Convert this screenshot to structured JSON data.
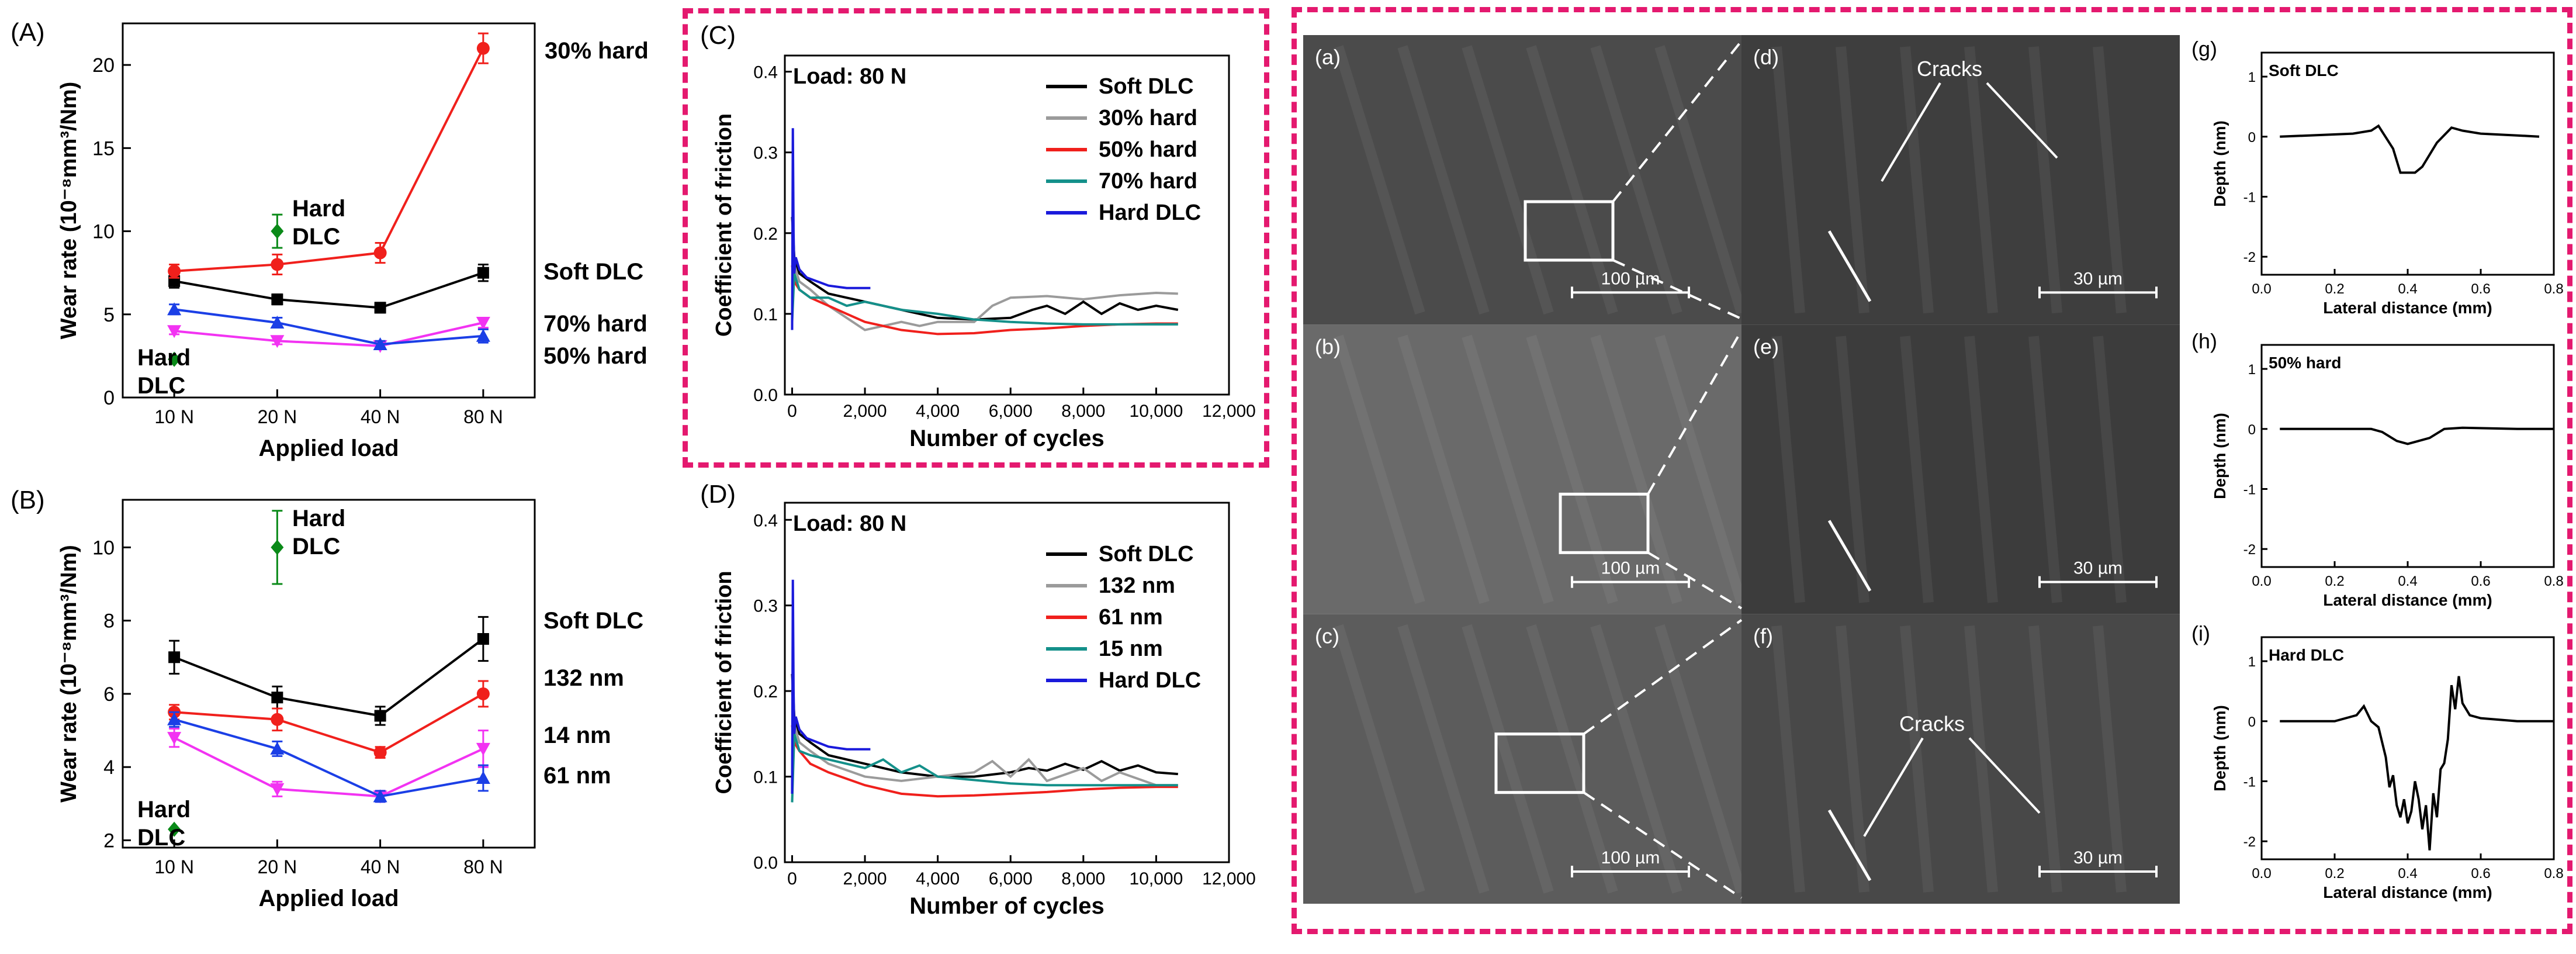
{
  "panels": {
    "A": {
      "letter": "(A)",
      "chart_data": {
        "type": "line",
        "categories": [
          "10 N",
          "20 N",
          "40 N",
          "80 N"
        ],
        "xlabel": "Applied load",
        "ylabel": "Wear rate (10⁻⁸mm³/Nm)",
        "ylim": [
          0,
          22.5
        ],
        "yticks": [
          0,
          5,
          10,
          15,
          20
        ],
        "series": [
          {
            "name": "Soft DLC",
            "color": "#000000",
            "marker": "square",
            "values": [
              7.0,
              5.9,
              5.4,
              7.5
            ],
            "errors": [
              0.4,
              0.3,
              0.3,
              0.5
            ]
          },
          {
            "name": "30% hard",
            "color": "#f0201c",
            "marker": "circle",
            "values": [
              7.6,
              8.0,
              8.7,
              21.0
            ],
            "errors": [
              0.4,
              0.6,
              0.6,
              0.9
            ]
          },
          {
            "name": "70% hard",
            "color": "#f233f2",
            "marker": "triangle-down",
            "values": [
              4.0,
              3.4,
              3.1,
              4.5
            ],
            "errors": [
              0.2,
              0.2,
              0.2,
              0.3
            ]
          },
          {
            "name": "50% hard",
            "color": "#1b3fe6",
            "marker": "triangle-up",
            "values": [
              5.3,
              4.5,
              3.2,
              3.7
            ],
            "errors": [
              0.3,
              0.3,
              0.2,
              0.4
            ]
          }
        ],
        "points": [
          {
            "name": "Hard DLC",
            "color": "#0a8a18",
            "marker": "diamond",
            "x": "20 N",
            "value": 10.0,
            "error": 1.0
          },
          {
            "name": "Hard DLC",
            "color": "#0a8a18",
            "marker": "diamond",
            "x": "10 N",
            "value": 2.3,
            "error": 0
          }
        ],
        "labels": [
          "30% hard",
          "Hard DLC",
          "Soft DLC",
          "70% hard",
          "50% hard",
          "Hard DLC"
        ]
      }
    },
    "B": {
      "letter": "(B)",
      "chart_data": {
        "type": "line",
        "categories": [
          "10 N",
          "20 N",
          "40 N",
          "80 N"
        ],
        "xlabel": "Applied load",
        "ylabel": "Wear rate (10⁻⁸mm³/Nm)",
        "ylim": [
          1.8,
          11.3
        ],
        "yticks": [
          2,
          4,
          6,
          8,
          10
        ],
        "series": [
          {
            "name": "Soft DLC",
            "color": "#000000",
            "marker": "square",
            "values": [
              7.0,
              5.9,
              5.4,
              7.5
            ],
            "errors": [
              0.45,
              0.3,
              0.25,
              0.6
            ]
          },
          {
            "name": "132 nm",
            "color": "#f0201c",
            "marker": "circle",
            "values": [
              5.5,
              5.3,
              4.4,
              6.0
            ],
            "errors": [
              0.2,
              0.3,
              0.15,
              0.35
            ]
          },
          {
            "name": "14 nm",
            "color": "#f233f2",
            "marker": "triangle-down",
            "values": [
              4.8,
              3.4,
              3.2,
              4.5
            ],
            "errors": [
              0.25,
              0.2,
              0.15,
              0.5
            ]
          },
          {
            "name": "61 nm",
            "color": "#1b3fe6",
            "marker": "triangle-up",
            "values": [
              5.3,
              4.5,
              3.2,
              3.7
            ],
            "errors": [
              0.2,
              0.2,
              0.15,
              0.35
            ]
          }
        ],
        "points": [
          {
            "name": "Hard DLC",
            "color": "#0a8a18",
            "marker": "diamond",
            "x": "20 N",
            "value": 10.0,
            "error": 1.0
          },
          {
            "name": "Hard DLC",
            "color": "#0a8a18",
            "marker": "diamond",
            "x": "10 N",
            "value": 2.3,
            "error": 0
          }
        ],
        "labels": [
          "Hard DLC",
          "Soft DLC",
          "132 nm",
          "14 nm",
          "61 nm",
          "Hard DLC"
        ]
      }
    },
    "C": {
      "letter": "(C)",
      "title": "Load: 80 N",
      "chart_data": {
        "type": "line",
        "xlabel": "Number of cycles",
        "ylabel": "Coefficient of friction",
        "xlim": [
          -200,
          12000
        ],
        "ylim": [
          0,
          0.42
        ],
        "xticks": [
          "0",
          "2,000",
          "4,000",
          "6,000",
          "8,000",
          "10,000",
          "12,000"
        ],
        "yticks": [
          "0.0",
          "0.1",
          "0.2",
          "0.3",
          "0.4"
        ],
        "legend": "top-right",
        "series": [
          {
            "name": "Soft DLC",
            "color": "#000000",
            "x": [
              0,
              60,
              200,
              500,
              1000,
              1500,
              2000,
              3000,
              4000,
              5000,
              6000,
              6600,
              7000,
              7500,
              8000,
              8500,
              9000,
              9500,
              10000,
              10600
            ],
            "y": [
              0.22,
              0.17,
              0.15,
              0.14,
              0.125,
              0.12,
              0.115,
              0.105,
              0.095,
              0.093,
              0.095,
              0.105,
              0.11,
              0.1,
              0.115,
              0.1,
              0.113,
              0.105,
              0.11,
              0.105
            ]
          },
          {
            "name": "30% hard",
            "color": "#9b9b9b",
            "x": [
              0,
              60,
              200,
              500,
              1000,
              1500,
              2000,
              2500,
              3000,
              3500,
              4000,
              5000,
              5500,
              6000,
              7000,
              8000,
              9000,
              10000,
              10600
            ],
            "y": [
              0.2,
              0.16,
              0.14,
              0.13,
              0.11,
              0.095,
              0.08,
              0.085,
              0.09,
              0.085,
              0.09,
              0.09,
              0.11,
              0.12,
              0.122,
              0.118,
              0.123,
              0.126,
              0.125
            ]
          },
          {
            "name": "50% hard",
            "color": "#f0201c",
            "x": [
              0,
              60,
              200,
              500,
              1000,
              1500,
              2000,
              3000,
              4000,
              5000,
              6000,
              7000,
              8000,
              9000,
              10000,
              10600
            ],
            "y": [
              0.16,
              0.14,
              0.13,
              0.12,
              0.11,
              0.1,
              0.09,
              0.08,
              0.075,
              0.076,
              0.08,
              0.082,
              0.085,
              0.087,
              0.088,
              0.088
            ]
          },
          {
            "name": "70% hard",
            "color": "#14908a",
            "x": [
              0,
              60,
              200,
              500,
              1000,
              1500,
              2000,
              2500,
              3000,
              4000,
              5000,
              6000,
              7000,
              8000,
              9000,
              10000,
              10600
            ],
            "y": [
              0.09,
              0.15,
              0.13,
              0.12,
              0.12,
              0.11,
              0.115,
              0.11,
              0.105,
              0.1,
              0.093,
              0.09,
              0.088,
              0.087,
              0.087,
              0.087,
              0.087
            ]
          },
          {
            "name": "Hard DLC",
            "color": "#1a1adb",
            "x": [
              0,
              20,
              40,
              60,
              100,
              200,
              400,
              700,
              1000,
              1500,
              2000,
              2150
            ],
            "y": [
              0.08,
              0.33,
              0.2,
              0.15,
              0.17,
              0.155,
              0.145,
              0.14,
              0.135,
              0.132,
              0.132,
              0.132
            ]
          }
        ]
      }
    },
    "D": {
      "letter": "(D)",
      "title": "Load: 80 N",
      "chart_data": {
        "type": "line",
        "xlabel": "Number of cycles",
        "ylabel": "Coefficient of friction",
        "xlim": [
          -200,
          12000
        ],
        "ylim": [
          0,
          0.42
        ],
        "xticks": [
          "0",
          "2,000",
          "4,000",
          "6,000",
          "8,000",
          "10,000",
          "12,000"
        ],
        "yticks": [
          "0.0",
          "0.1",
          "0.2",
          "0.3",
          "0.4"
        ],
        "legend": "top-right",
        "series": [
          {
            "name": "Soft DLC",
            "color": "#000000",
            "x": [
              0,
              60,
              200,
              500,
              1000,
              2000,
              3000,
              4000,
              5000,
              6000,
              6500,
              7000,
              7500,
              8000,
              8500,
              9000,
              9500,
              10000,
              10600
            ],
            "y": [
              0.22,
              0.17,
              0.15,
              0.14,
              0.125,
              0.115,
              0.105,
              0.1,
              0.1,
              0.105,
              0.11,
              0.107,
              0.115,
              0.108,
              0.118,
              0.107,
              0.113,
              0.105,
              0.103
            ]
          },
          {
            "name": "132 nm",
            "color": "#9b9b9b",
            "x": [
              0,
              60,
              200,
              500,
              1000,
              2000,
              3000,
              4000,
              5000,
              5500,
              6000,
              6500,
              7000,
              8000,
              8500,
              9000,
              10000,
              10600
            ],
            "y": [
              0.2,
              0.16,
              0.14,
              0.13,
              0.115,
              0.1,
              0.095,
              0.1,
              0.105,
              0.118,
              0.1,
              0.12,
              0.095,
              0.11,
              0.095,
              0.105,
              0.09,
              0.09
            ]
          },
          {
            "name": "61 nm",
            "color": "#f0201c",
            "x": [
              0,
              60,
              200,
              500,
              1000,
              2000,
              3000,
              4000,
              5000,
              6000,
              7000,
              8000,
              9000,
              10000,
              10600
            ],
            "y": [
              0.16,
              0.14,
              0.13,
              0.115,
              0.105,
              0.09,
              0.08,
              0.077,
              0.078,
              0.08,
              0.082,
              0.085,
              0.087,
              0.088,
              0.088
            ]
          },
          {
            "name": "15 nm",
            "color": "#14908a",
            "x": [
              0,
              60,
              200,
              500,
              1000,
              2000,
              2500,
              3000,
              3500,
              4000,
              5000,
              6000,
              7000,
              8000,
              9000,
              10000,
              10600
            ],
            "y": [
              0.07,
              0.15,
              0.13,
              0.125,
              0.12,
              0.11,
              0.12,
              0.105,
              0.113,
              0.1,
              0.096,
              0.092,
              0.09,
              0.09,
              0.09,
              0.09,
              0.09
            ]
          },
          {
            "name": "Hard DLC",
            "color": "#1a1adb",
            "x": [
              0,
              20,
              40,
              60,
              100,
              200,
              400,
              700,
              1000,
              1500,
              2000,
              2150
            ],
            "y": [
              0.08,
              0.33,
              0.2,
              0.15,
              0.17,
              0.155,
              0.145,
              0.14,
              0.135,
              0.132,
              0.132,
              0.132
            ]
          }
        ]
      }
    },
    "sem": {
      "tiles": [
        {
          "letter": "(a)",
          "scale": "100 µm",
          "shade": "#4b4b4b"
        },
        {
          "letter": "(d)",
          "scale": "30 µm",
          "shade": "#3e3e3e",
          "annotation": "Cracks"
        },
        {
          "letter": "(b)",
          "scale": "100 µm",
          "shade": "#6a6a6a"
        },
        {
          "letter": "(e)",
          "scale": "30 µm",
          "shade": "#3c3c3c"
        },
        {
          "letter": "(c)",
          "scale": "100 µm",
          "shade": "#5c5c5c"
        },
        {
          "letter": "(f)",
          "scale": "30 µm",
          "shade": "#484848",
          "annotation": "Cracks"
        }
      ]
    },
    "profiles": [
      {
        "letter": "(g)",
        "title": "Soft DLC",
        "chart_data": {
          "type": "line",
          "xlabel": "Lateral distance (mm)",
          "ylabel": "Depth (nm)",
          "xlim": [
            0,
            0.8
          ],
          "ylim": [
            -2.3,
            1.4
          ],
          "xticks": [
            "0.0",
            "0.2",
            "0.4",
            "0.6",
            "0.8"
          ],
          "yticks": [
            "1",
            "0",
            "-1",
            "-2"
          ],
          "x": [
            0.05,
            0.25,
            0.3,
            0.32,
            0.36,
            0.38,
            0.42,
            0.44,
            0.48,
            0.52,
            0.55,
            0.6,
            0.7,
            0.76
          ],
          "y": [
            0.0,
            0.05,
            0.1,
            0.18,
            -0.2,
            -0.6,
            -0.6,
            -0.5,
            -0.1,
            0.15,
            0.1,
            0.05,
            0.02,
            0.0
          ]
        }
      },
      {
        "letter": "(h)",
        "title": "50% hard",
        "chart_data": {
          "type": "line",
          "xlabel": "Lateral distance (mm)",
          "ylabel": "Depth (nm)",
          "xlim": [
            0,
            0.8
          ],
          "ylim": [
            -2.3,
            1.4
          ],
          "xticks": [
            "0.0",
            "0.2",
            "0.4",
            "0.6",
            "0.8"
          ],
          "yticks": [
            "1",
            "0",
            "-1",
            "-2"
          ],
          "x": [
            0.05,
            0.25,
            0.3,
            0.33,
            0.37,
            0.4,
            0.43,
            0.46,
            0.5,
            0.55,
            0.7,
            0.8
          ],
          "y": [
            0.0,
            0.0,
            0.0,
            -0.05,
            -0.2,
            -0.25,
            -0.2,
            -0.15,
            0.0,
            0.02,
            0.0,
            0.0
          ]
        }
      },
      {
        "letter": "(i)",
        "title": "Hard DLC",
        "chart_data": {
          "type": "line",
          "xlabel": "Lateral distance (mm)",
          "ylabel": "Depth (nm)",
          "xlim": [
            0,
            0.8
          ],
          "ylim": [
            -2.3,
            1.4
          ],
          "xticks": [
            "0.0",
            "0.2",
            "0.4",
            "0.6",
            "0.8"
          ],
          "yticks": [
            "1",
            "0",
            "-1",
            "-2"
          ],
          "x": [
            0.05,
            0.2,
            0.26,
            0.28,
            0.3,
            0.32,
            0.34,
            0.35,
            0.36,
            0.37,
            0.38,
            0.39,
            0.4,
            0.41,
            0.42,
            0.43,
            0.44,
            0.45,
            0.46,
            0.47,
            0.48,
            0.49,
            0.5,
            0.51,
            0.52,
            0.53,
            0.54,
            0.55,
            0.57,
            0.6,
            0.7,
            0.8
          ],
          "y": [
            0.0,
            0.0,
            0.1,
            0.25,
            0.0,
            -0.1,
            -0.6,
            -1.1,
            -0.9,
            -1.4,
            -1.6,
            -1.3,
            -1.7,
            -1.5,
            -1.0,
            -1.3,
            -1.8,
            -1.4,
            -2.15,
            -1.2,
            -1.6,
            -0.8,
            -0.7,
            -0.3,
            0.6,
            0.2,
            0.75,
            0.3,
            0.1,
            0.05,
            0.0,
            0.0
          ]
        }
      }
    ]
  }
}
